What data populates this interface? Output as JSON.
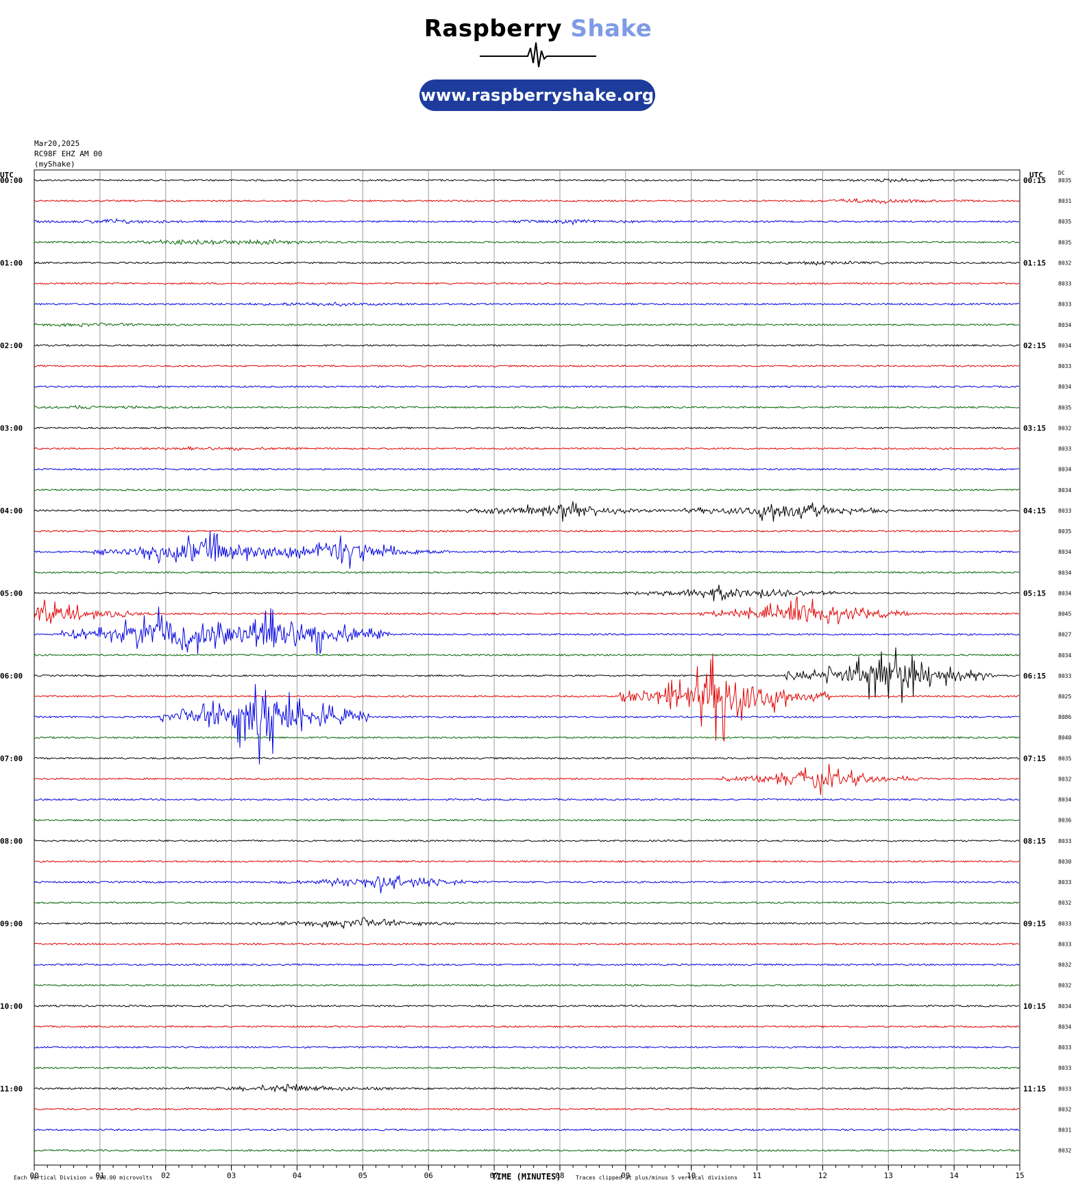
{
  "header": {
    "brand_part1": "Raspberry",
    "brand_part2": "Shake",
    "url": "www.raspberryshake.org",
    "date": "Mar20,2025",
    "station": "RC98F EHZ AM 00",
    "source": "(myShake)"
  },
  "colors": {
    "trace_cycle": [
      "#000000",
      "#e00000",
      "#0000e0",
      "#006400"
    ],
    "grid": "#9a9a9a",
    "brand_accent": "#7f9be6",
    "pill": "#1d3c9c"
  },
  "chart_data": {
    "type": "line",
    "subtype": "helicorder",
    "xlabel": "TIME (MINUTES)",
    "xlim": [
      0,
      15
    ],
    "x_ticks": [
      "00",
      "01",
      "02",
      "03",
      "04",
      "05",
      "06",
      "07",
      "08",
      "09",
      "10",
      "11",
      "12",
      "13",
      "14",
      "15"
    ],
    "left_axis_title": "UTC",
    "right_axis_title": "UTC",
    "dc_title": "DC",
    "left_times": [
      "00:00",
      "01:00",
      "02:00",
      "03:00",
      "04:00",
      "05:00",
      "06:00",
      "07:00",
      "08:00",
      "09:00",
      "10:00",
      "11:00"
    ],
    "right_times": [
      "00:15",
      "01:15",
      "02:15",
      "03:15",
      "04:15",
      "05:15",
      "06:15",
      "07:15",
      "08:15",
      "09:15",
      "10:15",
      "11:15"
    ],
    "dc_values": [
      "8035",
      "8031",
      "8035",
      "8035",
      "8032",
      "8033",
      "8033",
      "8034",
      "8034",
      "8033",
      "8034",
      "8035",
      "8032",
      "8033",
      "8034",
      "8034",
      "8033",
      "8035",
      "8034",
      "8034",
      "8034",
      "8045",
      "8027",
      "8034",
      "8033",
      "8025",
      "8086",
      "8040",
      "8035",
      "8032",
      "8034",
      "8036",
      "8033",
      "8030",
      "8033",
      "8032",
      "8033",
      "8033",
      "8032",
      "8032",
      "8034",
      "8034",
      "8033",
      "8033",
      "8033",
      "8032",
      "8031",
      "8032"
    ],
    "rows": 48,
    "minutes_per_row": 15,
    "trace_colors": [
      "black",
      "red",
      "blue",
      "green"
    ],
    "events": [
      {
        "row": 0,
        "minute": 13.3,
        "amp": 0.15
      },
      {
        "row": 1,
        "minute": 12.8,
        "amp": 0.2
      },
      {
        "row": 2,
        "minute": 1.2,
        "amp": 0.2
      },
      {
        "row": 2,
        "minute": 8.2,
        "amp": 0.2
      },
      {
        "row": 3,
        "minute": 2.2,
        "amp": 0.2
      },
      {
        "row": 3,
        "minute": 3.5,
        "amp": 0.2
      },
      {
        "row": 4,
        "minute": 12.0,
        "amp": 0.15
      },
      {
        "row": 6,
        "minute": 4.3,
        "amp": 0.2
      },
      {
        "row": 7,
        "minute": 0.8,
        "amp": 0.15
      },
      {
        "row": 11,
        "minute": 0.8,
        "amp": 0.15
      },
      {
        "row": 13,
        "minute": 2.6,
        "amp": 0.2
      },
      {
        "row": 16,
        "minute": 8.0,
        "amp": 1.0
      },
      {
        "row": 16,
        "minute": 11.4,
        "amp": 1.5
      },
      {
        "row": 18,
        "minute": 2.5,
        "amp": 2.5
      },
      {
        "row": 18,
        "minute": 4.7,
        "amp": 2.0
      },
      {
        "row": 20,
        "minute": 10.6,
        "amp": 1.0
      },
      {
        "row": 21,
        "minute": 0.2,
        "amp": 1.5
      },
      {
        "row": 21,
        "minute": 11.7,
        "amp": 2.0
      },
      {
        "row": 22,
        "minute": 2.0,
        "amp": 3.5
      },
      {
        "row": 22,
        "minute": 3.8,
        "amp": 4.0
      },
      {
        "row": 24,
        "minute": 13.0,
        "amp": 3.5
      },
      {
        "row": 25,
        "minute": 10.5,
        "amp": 5.0
      },
      {
        "row": 26,
        "minute": 3.5,
        "amp": 5.0
      },
      {
        "row": 29,
        "minute": 12.0,
        "amp": 1.5
      },
      {
        "row": 34,
        "minute": 5.3,
        "amp": 1.0
      },
      {
        "row": 36,
        "minute": 4.9,
        "amp": 0.6
      },
      {
        "row": 44,
        "minute": 3.9,
        "amp": 0.5
      }
    ],
    "xlabel_note": "Traces clipped at plus/minus 5 vertical divisions",
    "scale_note": "Each Vertical Division =  200.00 microvolts"
  }
}
